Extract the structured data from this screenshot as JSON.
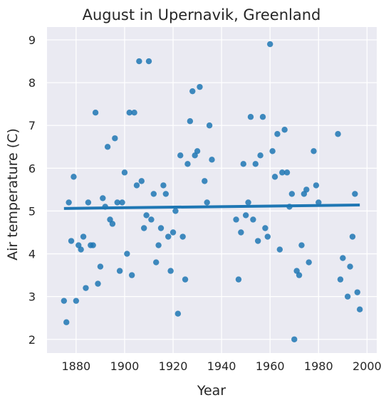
{
  "chart_data": {
    "type": "scatter",
    "title": "August in Upernavik, Greenland",
    "xlabel": "Year",
    "ylabel": "Air temperature (C)",
    "xlim": [
      1868,
      2004
    ],
    "ylim": [
      1.68,
      9.3
    ],
    "xticks": [
      1880,
      1900,
      1920,
      1940,
      1960,
      1980,
      2000
    ],
    "yticks": [
      2,
      3,
      4,
      5,
      6,
      7,
      8,
      9
    ],
    "grid": true,
    "colors": {
      "background": "#eaeaf2",
      "grid": "#ffffff",
      "points": "#1f77b4",
      "regression_line": "#1f77b4"
    },
    "series": [
      {
        "points": [
          [
            1875,
            2.9
          ],
          [
            1876,
            2.4
          ],
          [
            1877,
            5.2
          ],
          [
            1878,
            4.3
          ],
          [
            1879,
            5.8
          ],
          [
            1880,
            2.9
          ],
          [
            1881,
            4.2
          ],
          [
            1882,
            4.1
          ],
          [
            1883,
            4.4
          ],
          [
            1884,
            3.2
          ],
          [
            1885,
            5.2
          ],
          [
            1886,
            4.2
          ],
          [
            1887,
            4.2
          ],
          [
            1888,
            7.3
          ],
          [
            1889,
            3.3
          ],
          [
            1890,
            3.7
          ],
          [
            1891,
            5.3
          ],
          [
            1892,
            5.1
          ],
          [
            1893,
            6.5
          ],
          [
            1894,
            4.8
          ],
          [
            1895,
            4.7
          ],
          [
            1896,
            6.7
          ],
          [
            1897,
            5.2
          ],
          [
            1898,
            3.6
          ],
          [
            1899,
            5.2
          ],
          [
            1900,
            5.9
          ],
          [
            1901,
            4.0
          ],
          [
            1902,
            7.3
          ],
          [
            1903,
            3.5
          ],
          [
            1904,
            7.3
          ],
          [
            1905,
            5.6
          ],
          [
            1906,
            8.5
          ],
          [
            1907,
            5.7
          ],
          [
            1908,
            4.6
          ],
          [
            1909,
            4.9
          ],
          [
            1910,
            8.5
          ],
          [
            1911,
            4.8
          ],
          [
            1912,
            5.4
          ],
          [
            1913,
            3.8
          ],
          [
            1914,
            4.2
          ],
          [
            1915,
            4.6
          ],
          [
            1916,
            5.6
          ],
          [
            1917,
            5.4
          ],
          [
            1918,
            4.4
          ],
          [
            1919,
            3.6
          ],
          [
            1920,
            4.5
          ],
          [
            1921,
            5.0
          ],
          [
            1922,
            2.6
          ],
          [
            1923,
            6.3
          ],
          [
            1924,
            4.4
          ],
          [
            1925,
            3.4
          ],
          [
            1926,
            6.1
          ],
          [
            1927,
            7.1
          ],
          [
            1928,
            7.8
          ],
          [
            1929,
            6.3
          ],
          [
            1930,
            6.4
          ],
          [
            1931,
            7.9
          ],
          [
            1933,
            5.7
          ],
          [
            1934,
            5.2
          ],
          [
            1935,
            7.0
          ],
          [
            1936,
            6.2
          ],
          [
            1946,
            4.8
          ],
          [
            1947,
            3.4
          ],
          [
            1948,
            4.5
          ],
          [
            1949,
            6.1
          ],
          [
            1950,
            4.9
          ],
          [
            1951,
            5.2
          ],
          [
            1952,
            7.2
          ],
          [
            1953,
            4.8
          ],
          [
            1954,
            6.1
          ],
          [
            1955,
            4.3
          ],
          [
            1956,
            6.3
          ],
          [
            1957,
            7.2
          ],
          [
            1958,
            4.6
          ],
          [
            1959,
            4.4
          ],
          [
            1960,
            8.9
          ],
          [
            1961,
            6.4
          ],
          [
            1962,
            5.8
          ],
          [
            1963,
            6.8
          ],
          [
            1964,
            4.1
          ],
          [
            1965,
            5.9
          ],
          [
            1966,
            6.9
          ],
          [
            1967,
            5.9
          ],
          [
            1968,
            5.1
          ],
          [
            1969,
            5.4
          ],
          [
            1970,
            2.0
          ],
          [
            1971,
            3.6
          ],
          [
            1972,
            3.5
          ],
          [
            1973,
            4.2
          ],
          [
            1974,
            5.4
          ],
          [
            1975,
            5.5
          ],
          [
            1976,
            3.8
          ],
          [
            1978,
            6.4
          ],
          [
            1979,
            5.6
          ],
          [
            1980,
            5.2
          ],
          [
            1988,
            6.8
          ],
          [
            1989,
            3.4
          ],
          [
            1990,
            3.9
          ],
          [
            1992,
            3.0
          ],
          [
            1993,
            3.7
          ],
          [
            1994,
            4.4
          ],
          [
            1995,
            5.4
          ],
          [
            1996,
            3.1
          ],
          [
            1997,
            2.7
          ]
        ]
      }
    ],
    "regression": {
      "x": [
        1875,
        1997
      ],
      "y": [
        5.06,
        5.14
      ]
    }
  }
}
